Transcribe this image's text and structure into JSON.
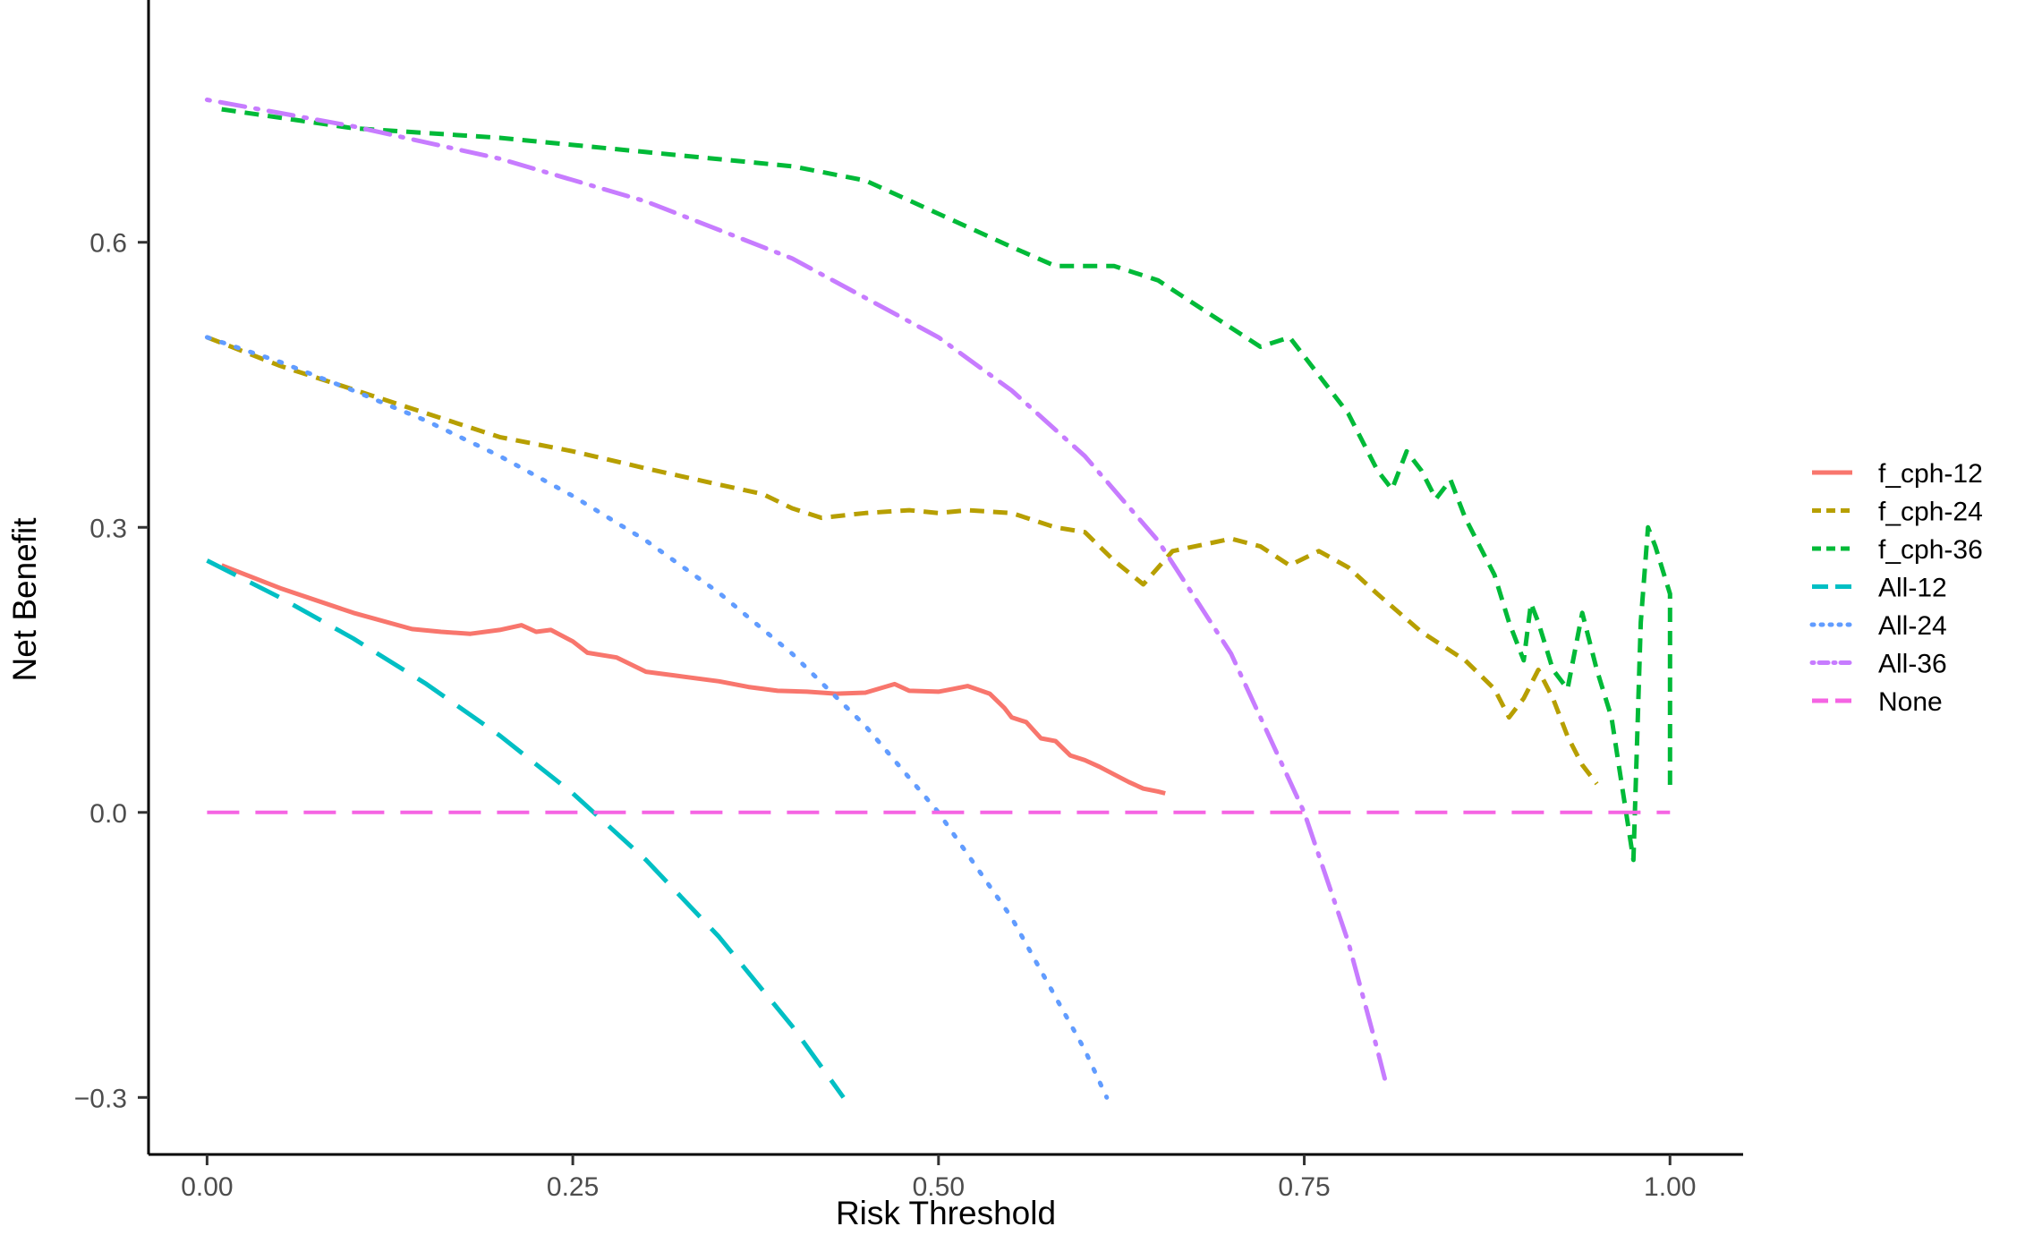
{
  "chart_data": {
    "type": "line",
    "title": "",
    "xlabel": "Risk Threshold",
    "ylabel": "Net Benefit",
    "xlim": [
      -0.04,
      1.05
    ],
    "ylim": [
      -0.36,
      0.855
    ],
    "x_ticks": [
      {
        "value": 0,
        "label": "0.00"
      },
      {
        "value": 0.25,
        "label": "0.25"
      },
      {
        "value": 0.5,
        "label": "0.50"
      },
      {
        "value": 0.75,
        "label": "0.75"
      },
      {
        "value": 1,
        "label": "1.00"
      }
    ],
    "y_ticks": [
      {
        "value": -0.3,
        "label": "−0.3"
      },
      {
        "value": 0,
        "label": "0.0"
      },
      {
        "value": 0.3,
        "label": "0.3"
      },
      {
        "value": 0.6,
        "label": "0.6"
      }
    ],
    "grid": false,
    "legend_position": "right",
    "series": [
      {
        "name": "f_cph-12",
        "color": "#F8766D",
        "style": "solid",
        "points": [
          [
            0.01,
            0.26
          ],
          [
            0.05,
            0.236
          ],
          [
            0.1,
            0.21
          ],
          [
            0.14,
            0.193
          ],
          [
            0.16,
            0.19
          ],
          [
            0.18,
            0.188
          ],
          [
            0.2,
            0.192
          ],
          [
            0.215,
            0.197
          ],
          [
            0.225,
            0.19
          ],
          [
            0.235,
            0.192
          ],
          [
            0.25,
            0.18
          ],
          [
            0.26,
            0.168
          ],
          [
            0.28,
            0.163
          ],
          [
            0.3,
            0.148
          ],
          [
            0.32,
            0.144
          ],
          [
            0.35,
            0.138
          ],
          [
            0.37,
            0.132
          ],
          [
            0.39,
            0.128
          ],
          [
            0.41,
            0.127
          ],
          [
            0.43,
            0.125
          ],
          [
            0.45,
            0.126
          ],
          [
            0.47,
            0.135
          ],
          [
            0.48,
            0.128
          ],
          [
            0.5,
            0.127
          ],
          [
            0.51,
            0.13
          ],
          [
            0.52,
            0.133
          ],
          [
            0.535,
            0.125
          ],
          [
            0.545,
            0.11
          ],
          [
            0.55,
            0.1
          ],
          [
            0.56,
            0.095
          ],
          [
            0.57,
            0.078
          ],
          [
            0.58,
            0.075
          ],
          [
            0.59,
            0.06
          ],
          [
            0.6,
            0.055
          ],
          [
            0.61,
            0.048
          ],
          [
            0.62,
            0.04
          ],
          [
            0.63,
            0.032
          ],
          [
            0.64,
            0.025
          ],
          [
            0.65,
            0.022
          ],
          [
            0.655,
            0.02
          ]
        ]
      },
      {
        "name": "f_cph-24",
        "color": "#B79F00",
        "style": "dashed",
        "points": [
          [
            0,
            0.5
          ],
          [
            0.05,
            0.47
          ],
          [
            0.1,
            0.445
          ],
          [
            0.15,
            0.42
          ],
          [
            0.2,
            0.395
          ],
          [
            0.25,
            0.38
          ],
          [
            0.3,
            0.362
          ],
          [
            0.35,
            0.345
          ],
          [
            0.38,
            0.335
          ],
          [
            0.4,
            0.32
          ],
          [
            0.42,
            0.31
          ],
          [
            0.45,
            0.315
          ],
          [
            0.48,
            0.318
          ],
          [
            0.5,
            0.315
          ],
          [
            0.52,
            0.318
          ],
          [
            0.55,
            0.315
          ],
          [
            0.58,
            0.3
          ],
          [
            0.6,
            0.295
          ],
          [
            0.62,
            0.265
          ],
          [
            0.64,
            0.24
          ],
          [
            0.66,
            0.275
          ],
          [
            0.7,
            0.288
          ],
          [
            0.72,
            0.28
          ],
          [
            0.74,
            0.26
          ],
          [
            0.76,
            0.275
          ],
          [
            0.78,
            0.258
          ],
          [
            0.8,
            0.23
          ],
          [
            0.83,
            0.19
          ],
          [
            0.86,
            0.16
          ],
          [
            0.88,
            0.13
          ],
          [
            0.89,
            0.1
          ],
          [
            0.9,
            0.12
          ],
          [
            0.91,
            0.15
          ],
          [
            0.92,
            0.12
          ],
          [
            0.93,
            0.08
          ],
          [
            0.94,
            0.05
          ],
          [
            0.95,
            0.03
          ]
        ]
      },
      {
        "name": "f_cph-36",
        "color": "#00BA38",
        "style": "dashed",
        "points": [
          [
            0.01,
            0.74
          ],
          [
            0.1,
            0.72
          ],
          [
            0.2,
            0.71
          ],
          [
            0.3,
            0.695
          ],
          [
            0.4,
            0.68
          ],
          [
            0.45,
            0.665
          ],
          [
            0.5,
            0.63
          ],
          [
            0.55,
            0.595
          ],
          [
            0.58,
            0.575
          ],
          [
            0.62,
            0.575
          ],
          [
            0.65,
            0.56
          ],
          [
            0.68,
            0.53
          ],
          [
            0.72,
            0.49
          ],
          [
            0.74,
            0.5
          ],
          [
            0.76,
            0.46
          ],
          [
            0.78,
            0.42
          ],
          [
            0.8,
            0.36
          ],
          [
            0.81,
            0.34
          ],
          [
            0.82,
            0.38
          ],
          [
            0.83,
            0.36
          ],
          [
            0.84,
            0.33
          ],
          [
            0.85,
            0.35
          ],
          [
            0.86,
            0.31
          ],
          [
            0.87,
            0.28
          ],
          [
            0.88,
            0.25
          ],
          [
            0.89,
            0.2
          ],
          [
            0.9,
            0.16
          ],
          [
            0.905,
            0.22
          ],
          [
            0.91,
            0.2
          ],
          [
            0.92,
            0.15
          ],
          [
            0.93,
            0.13
          ],
          [
            0.94,
            0.21
          ],
          [
            0.95,
            0.15
          ],
          [
            0.96,
            0.1
          ],
          [
            0.965,
            0.05
          ],
          [
            0.97,
            0.0
          ],
          [
            0.975,
            -0.05
          ],
          [
            0.98,
            0.2
          ],
          [
            0.985,
            0.3
          ],
          [
            0.99,
            0.28
          ],
          [
            1.0,
            0.23
          ],
          [
            1.0,
            0.02
          ]
        ]
      },
      {
        "name": "All-12",
        "color": "#00BFC4",
        "style": "longdash",
        "points": [
          [
            0,
            0.265
          ],
          [
            0.05,
            0.226
          ],
          [
            0.1,
            0.183
          ],
          [
            0.15,
            0.135
          ],
          [
            0.2,
            0.081
          ],
          [
            0.25,
            0.02
          ],
          [
            0.3,
            -0.05
          ],
          [
            0.35,
            -0.131
          ],
          [
            0.4,
            -0.225
          ],
          [
            0.435,
            -0.3
          ]
        ]
      },
      {
        "name": "All-24",
        "color": "#619CFF",
        "style": "dotted",
        "points": [
          [
            0,
            0.5
          ],
          [
            0.05,
            0.474
          ],
          [
            0.1,
            0.444
          ],
          [
            0.15,
            0.412
          ],
          [
            0.2,
            0.375
          ],
          [
            0.25,
            0.333
          ],
          [
            0.3,
            0.286
          ],
          [
            0.35,
            0.231
          ],
          [
            0.4,
            0.167
          ],
          [
            0.45,
            0.091
          ],
          [
            0.5,
            0.0
          ],
          [
            0.55,
            -0.111
          ],
          [
            0.6,
            -0.25
          ],
          [
            0.615,
            -0.3
          ]
        ]
      },
      {
        "name": "All-36",
        "color": "#C77CFF",
        "style": "dotdash",
        "points": [
          [
            0,
            0.75
          ],
          [
            0.1,
            0.722
          ],
          [
            0.2,
            0.688
          ],
          [
            0.3,
            0.643
          ],
          [
            0.4,
            0.583
          ],
          [
            0.5,
            0.5
          ],
          [
            0.55,
            0.444
          ],
          [
            0.6,
            0.375
          ],
          [
            0.65,
            0.286
          ],
          [
            0.7,
            0.167
          ],
          [
            0.75,
            0.0
          ],
          [
            0.78,
            -0.136
          ],
          [
            0.8,
            -0.25
          ],
          [
            0.805,
            -0.28
          ]
        ]
      },
      {
        "name": "None",
        "color": "#F564E3",
        "style": "longdash",
        "points": [
          [
            0,
            0
          ],
          [
            1,
            0
          ]
        ]
      }
    ]
  }
}
